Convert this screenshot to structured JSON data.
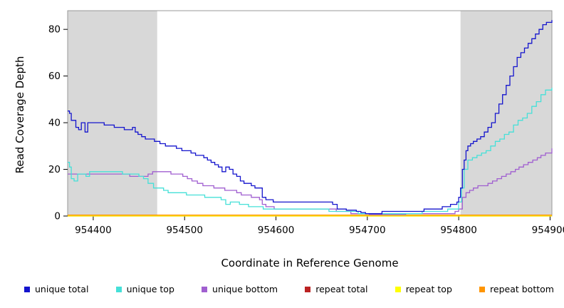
{
  "figure": {
    "xlabel": "Coordinate in Reference Genome",
    "ylabel": "Read Coverage Depth"
  },
  "chart_data": {
    "type": "line",
    "title": "",
    "xlabel": "Coordinate in Reference Genome",
    "ylabel": "Read Coverage Depth",
    "xlim": [
      954372,
      954902
    ],
    "ylim": [
      0,
      88
    ],
    "xticks": [
      954400,
      954500,
      954600,
      954700,
      954800,
      954900
    ],
    "yticks": [
      0,
      20,
      40,
      60,
      80
    ],
    "grid": false,
    "legend_position": "bottom",
    "step_interpolation": true,
    "shade_color": "#d8d8d8",
    "box_color": "#999999",
    "shaded_regions": [
      [
        954372,
        954470
      ],
      [
        954802,
        954902
      ]
    ],
    "legend": [
      {
        "label": "unique total",
        "color": "#1414cd"
      },
      {
        "label": "unique top",
        "color": "#45e0d8"
      },
      {
        "label": "unique bottom",
        "color": "#a05fd0"
      },
      {
        "label": "repeat total",
        "color": "#bb2222"
      },
      {
        "label": "repeat top",
        "color": "#ffff00"
      },
      {
        "label": "repeat bottom",
        "color": "#ff9500"
      }
    ],
    "series": [
      {
        "name": "repeat total",
        "color": "#bb2222",
        "points": [
          [
            954372,
            0
          ],
          [
            954902,
            0
          ]
        ]
      },
      {
        "name": "repeat top",
        "color": "#ffff00",
        "points": [
          [
            954372,
            0
          ],
          [
            954902,
            0
          ]
        ]
      },
      {
        "name": "repeat bottom",
        "color": "#ff9500",
        "points": [
          [
            954372,
            0.4
          ],
          [
            954902,
            0.4
          ]
        ]
      },
      {
        "name": "unique bottom",
        "color": "#a05fd0",
        "points": [
          [
            954372,
            18
          ],
          [
            954390,
            18
          ],
          [
            954410,
            18
          ],
          [
            954430,
            18
          ],
          [
            954440,
            17
          ],
          [
            954450,
            17
          ],
          [
            954460,
            18
          ],
          [
            954465,
            19
          ],
          [
            954475,
            19
          ],
          [
            954485,
            18
          ],
          [
            954492,
            18
          ],
          [
            954498,
            17
          ],
          [
            954503,
            16
          ],
          [
            954508,
            15
          ],
          [
            954514,
            14
          ],
          [
            954520,
            13
          ],
          [
            954527,
            13
          ],
          [
            954532,
            12
          ],
          [
            954538,
            12
          ],
          [
            954544,
            11
          ],
          [
            954552,
            11
          ],
          [
            954557,
            10
          ],
          [
            954562,
            9
          ],
          [
            954568,
            9
          ],
          [
            954573,
            8
          ],
          [
            954578,
            8
          ],
          [
            954582,
            7
          ],
          [
            954585,
            5
          ],
          [
            954589,
            4
          ],
          [
            954594,
            4
          ],
          [
            954598,
            3
          ],
          [
            954610,
            3
          ],
          [
            954630,
            3
          ],
          [
            954650,
            3
          ],
          [
            954660,
            3
          ],
          [
            954666,
            2
          ],
          [
            954675,
            2
          ],
          [
            954682,
            1
          ],
          [
            954692,
            1
          ],
          [
            954702,
            0.6
          ],
          [
            954725,
            0.6
          ],
          [
            954742,
            1
          ],
          [
            954762,
            1
          ],
          [
            954782,
            1
          ],
          [
            954792,
            1
          ],
          [
            954796,
            2
          ],
          [
            954800,
            3
          ],
          [
            954804,
            8
          ],
          [
            954808,
            10
          ],
          [
            954812,
            11
          ],
          [
            954816,
            12
          ],
          [
            954821,
            13
          ],
          [
            954827,
            13
          ],
          [
            954832,
            14
          ],
          [
            954837,
            15
          ],
          [
            954842,
            16
          ],
          [
            954847,
            17
          ],
          [
            954852,
            18
          ],
          [
            954857,
            19
          ],
          [
            954862,
            20
          ],
          [
            954866,
            21
          ],
          [
            954871,
            22
          ],
          [
            954876,
            23
          ],
          [
            954881,
            24
          ],
          [
            954886,
            25
          ],
          [
            954890,
            26
          ],
          [
            954895,
            27
          ],
          [
            954902,
            29
          ]
        ]
      },
      {
        "name": "unique top",
        "color": "#45e0d8",
        "points": [
          [
            954372,
            23
          ],
          [
            954374,
            21
          ],
          [
            954376,
            16
          ],
          [
            954379,
            15
          ],
          [
            954383,
            18
          ],
          [
            954388,
            18
          ],
          [
            954392,
            17
          ],
          [
            954396,
            19
          ],
          [
            954405,
            19
          ],
          [
            954415,
            19
          ],
          [
            954425,
            19
          ],
          [
            954432,
            18
          ],
          [
            954442,
            18
          ],
          [
            954450,
            17
          ],
          [
            954455,
            16
          ],
          [
            954460,
            14
          ],
          [
            954466,
            12
          ],
          [
            954472,
            12
          ],
          [
            954477,
            11
          ],
          [
            954482,
            10
          ],
          [
            954492,
            10
          ],
          [
            954502,
            9
          ],
          [
            954512,
            9
          ],
          [
            954522,
            8
          ],
          [
            954532,
            8
          ],
          [
            954540,
            7
          ],
          [
            954545,
            5
          ],
          [
            954550,
            6
          ],
          [
            954560,
            5
          ],
          [
            954570,
            4
          ],
          [
            954580,
            4
          ],
          [
            954586,
            3
          ],
          [
            954596,
            3
          ],
          [
            954615,
            3
          ],
          [
            954640,
            3
          ],
          [
            954658,
            2
          ],
          [
            954672,
            2
          ],
          [
            954682,
            2
          ],
          [
            954690,
            1
          ],
          [
            954705,
            1
          ],
          [
            954722,
            1
          ],
          [
            954742,
            1
          ],
          [
            954760,
            2
          ],
          [
            954778,
            2
          ],
          [
            954788,
            3
          ],
          [
            954796,
            3
          ],
          [
            954800,
            6
          ],
          [
            954803,
            12
          ],
          [
            954806,
            20
          ],
          [
            954810,
            24
          ],
          [
            954815,
            25
          ],
          [
            954820,
            26
          ],
          [
            954825,
            27
          ],
          [
            954830,
            28
          ],
          [
            954835,
            30
          ],
          [
            954840,
            32
          ],
          [
            954845,
            33
          ],
          [
            954850,
            35
          ],
          [
            954855,
            36
          ],
          [
            954860,
            39
          ],
          [
            954865,
            41
          ],
          [
            954870,
            42
          ],
          [
            954875,
            44
          ],
          [
            954880,
            47
          ],
          [
            954885,
            49
          ],
          [
            954890,
            52
          ],
          [
            954895,
            54
          ],
          [
            954902,
            55
          ]
        ]
      },
      {
        "name": "unique total",
        "color": "#1414cd",
        "points": [
          [
            954372,
            45
          ],
          [
            954374,
            44
          ],
          [
            954376,
            41
          ],
          [
            954379,
            41
          ],
          [
            954381,
            38
          ],
          [
            954384,
            37
          ],
          [
            954387,
            40
          ],
          [
            954391,
            36
          ],
          [
            954394,
            40
          ],
          [
            954400,
            40
          ],
          [
            954406,
            40
          ],
          [
            954412,
            39
          ],
          [
            954418,
            39
          ],
          [
            954423,
            38
          ],
          [
            954429,
            38
          ],
          [
            954434,
            37
          ],
          [
            954439,
            37
          ],
          [
            954443,
            38
          ],
          [
            954446,
            36
          ],
          [
            954449,
            35
          ],
          [
            954453,
            34
          ],
          [
            954457,
            33
          ],
          [
            954463,
            33
          ],
          [
            954467,
            32
          ],
          [
            954473,
            31
          ],
          [
            954479,
            30
          ],
          [
            954486,
            30
          ],
          [
            954491,
            29
          ],
          [
            954497,
            28
          ],
          [
            954502,
            28
          ],
          [
            954507,
            27
          ],
          [
            954512,
            26
          ],
          [
            954517,
            26
          ],
          [
            954521,
            25
          ],
          [
            954525,
            24
          ],
          [
            954529,
            23
          ],
          [
            954533,
            22
          ],
          [
            954537,
            21
          ],
          [
            954541,
            19
          ],
          [
            954545,
            21
          ],
          [
            954549,
            20
          ],
          [
            954553,
            18
          ],
          [
            954557,
            17
          ],
          [
            954561,
            15
          ],
          [
            954565,
            14
          ],
          [
            954570,
            14
          ],
          [
            954573,
            13
          ],
          [
            954577,
            12
          ],
          [
            954581,
            12
          ],
          [
            954585,
            8
          ],
          [
            954589,
            7
          ],
          [
            954593,
            7
          ],
          [
            954597,
            6
          ],
          [
            954610,
            6
          ],
          [
            954625,
            6
          ],
          [
            954640,
            6
          ],
          [
            954655,
            6
          ],
          [
            954662,
            5
          ],
          [
            954667,
            3
          ],
          [
            954673,
            3
          ],
          [
            954677,
            2.5
          ],
          [
            954683,
            2.5
          ],
          [
            954688,
            2
          ],
          [
            954693,
            1.5
          ],
          [
            954698,
            1
          ],
          [
            954706,
            1
          ],
          [
            954712,
            1
          ],
          [
            954716,
            2
          ],
          [
            954726,
            2
          ],
          [
            954738,
            2
          ],
          [
            954750,
            2
          ],
          [
            954757,
            2
          ],
          [
            954762,
            3
          ],
          [
            954770,
            3
          ],
          [
            954777,
            3
          ],
          [
            954782,
            4
          ],
          [
            954787,
            4
          ],
          [
            954791,
            5
          ],
          [
            954796,
            5
          ],
          [
            954798,
            6
          ],
          [
            954800,
            8
          ],
          [
            954802,
            12
          ],
          [
            954804,
            20
          ],
          [
            954806,
            24
          ],
          [
            954808,
            28
          ],
          [
            954810,
            30
          ],
          [
            954813,
            31
          ],
          [
            954816,
            32
          ],
          [
            954820,
            33
          ],
          [
            954824,
            34
          ],
          [
            954828,
            36
          ],
          [
            954832,
            38
          ],
          [
            954836,
            40
          ],
          [
            954840,
            44
          ],
          [
            954844,
            48
          ],
          [
            954848,
            52
          ],
          [
            954852,
            56
          ],
          [
            954856,
            60
          ],
          [
            954860,
            64
          ],
          [
            954864,
            68
          ],
          [
            954868,
            70
          ],
          [
            954872,
            72
          ],
          [
            954876,
            74
          ],
          [
            954880,
            76
          ],
          [
            954884,
            78
          ],
          [
            954888,
            80
          ],
          [
            954892,
            82
          ],
          [
            954896,
            83
          ],
          [
            954902,
            84
          ]
        ]
      }
    ]
  }
}
